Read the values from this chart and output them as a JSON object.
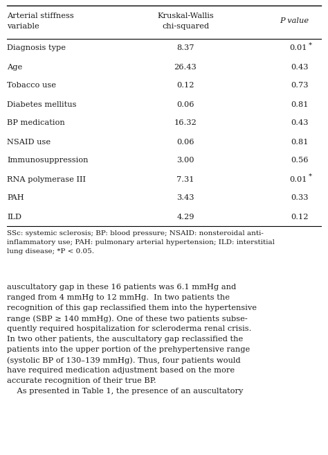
{
  "headers_col1": "Arterial stiffness\nvariable",
  "headers_col2": "Kruskal-Wallis\nchi-squared",
  "headers_col3": "P value",
  "rows": [
    [
      "Diagnosis type",
      "8.37",
      "0.01",
      true
    ],
    [
      "Age",
      "26.43",
      "0.43",
      false
    ],
    [
      "Tobacco use",
      "0.12",
      "0.73",
      false
    ],
    [
      "Diabetes mellitus",
      "0.06",
      "0.81",
      false
    ],
    [
      "BP medication",
      "16.32",
      "0.43",
      false
    ],
    [
      "NSAID use",
      "0.06",
      "0.81",
      false
    ],
    [
      "Immunosuppression",
      "3.00",
      "0.56",
      false
    ],
    [
      "RNA polymerase III",
      "7.31",
      "0.01",
      true
    ],
    [
      "PAH",
      "3.43",
      "0.33",
      false
    ],
    [
      "ILD",
      "4.29",
      "0.12",
      false
    ]
  ],
  "footnote_lines": [
    "SSc: systemic sclerosis; BP: blood pressure; NSAID: nonsteroidal anti-",
    "inflammatory use; PAH: pulmonary arterial hypertension; ILD: interstitial",
    "lung disease; *P < 0.05."
  ],
  "body_text_lines": [
    "auscultatory gap in these 16 patients was 6.1 mmHg and",
    "ranged from 4 mmHg to 12 mmHg.  In two patients the",
    "recognition of this gap reclassified them into the hypertensive",
    "range (SBP ≥ 140 mmHg). One of these two patients subse-",
    "quently required hospitalization for scleroderma renal crisis.",
    "In two other patients, the auscultatory gap reclassified the",
    "patients into the upper portion of the prehypertensive range",
    "(systolic BP of 130–139 mmHg). Thus, four patients would",
    "have required medication adjustment based on the more",
    "accurate recognition of their true BP.",
    "    As presented in Table 1, the presence of an auscultatory"
  ],
  "bg_color": "#ffffff",
  "text_color": "#1a1a1a",
  "font_size": 8.2,
  "font_size_footnote": 7.5,
  "font_size_body": 8.2
}
